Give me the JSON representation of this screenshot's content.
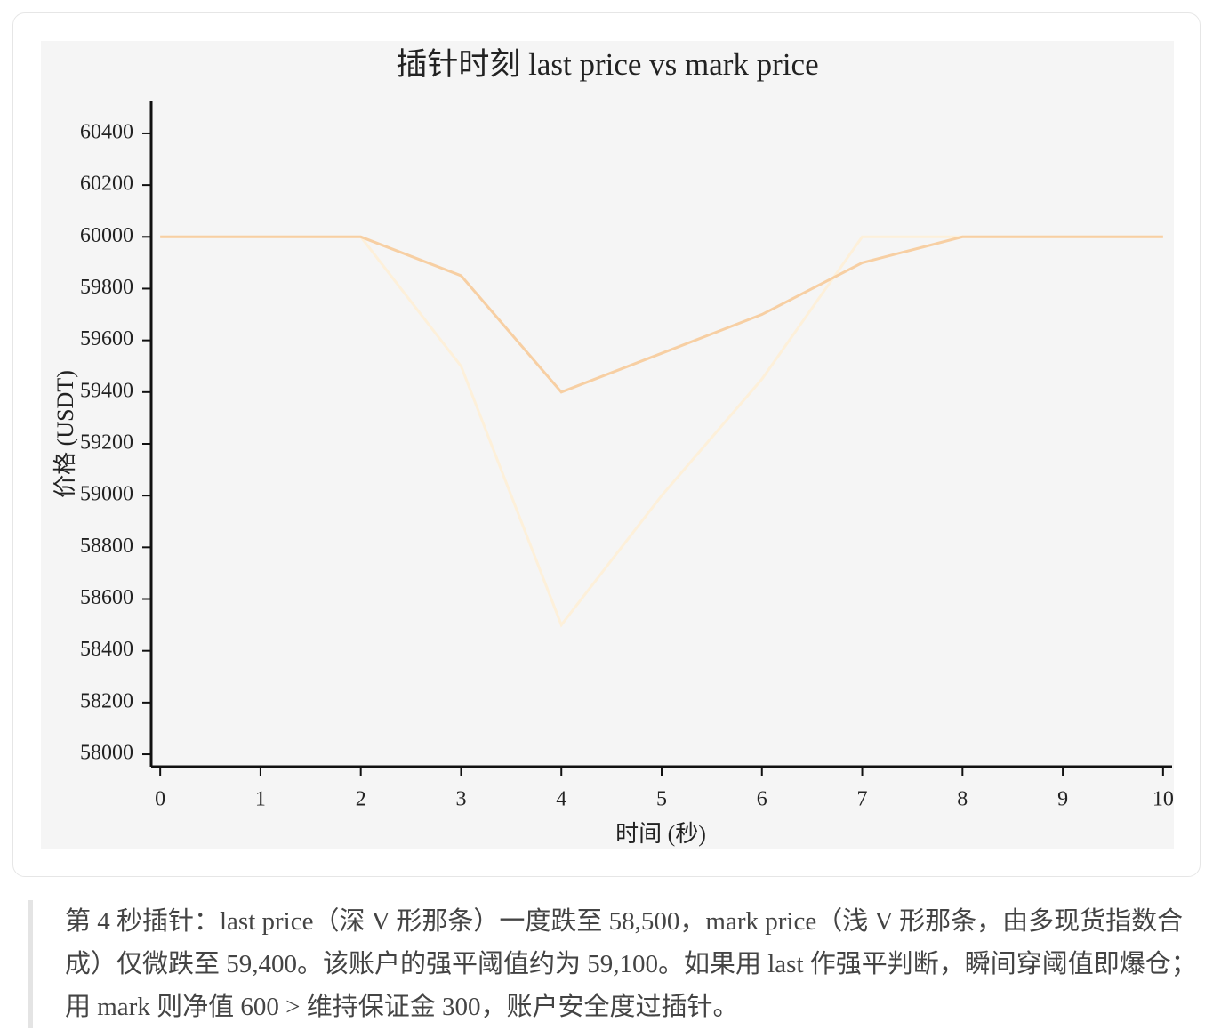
{
  "chart_data": {
    "type": "line",
    "title": "插针时刻 last price vs mark price",
    "x_label": "时间 (秒)",
    "y_label": "价格 (USDT)",
    "x": [
      0,
      1,
      2,
      3,
      4,
      5,
      6,
      7,
      8,
      9,
      10
    ],
    "series": [
      {
        "color": "#fdf0da",
        "values": [
          60000,
          60000,
          60000,
          59500,
          58500,
          59000,
          59450,
          60000,
          60000,
          60000,
          60000
        ]
      },
      {
        "color": "#f7cfa3",
        "values": [
          60000,
          60000,
          60000,
          59850,
          59400,
          59550,
          59700,
          59900,
          60000,
          60000,
          60000
        ]
      }
    ],
    "xlim": [
      -0.09,
      10.09
    ],
    "ylim": [
      57952,
      60527
    ],
    "xticks": [
      0,
      1,
      2,
      3,
      4,
      5,
      6,
      7,
      8,
      9,
      10
    ],
    "yticks": [
      58000,
      58200,
      58400,
      58600,
      58800,
      59000,
      59200,
      59400,
      59600,
      59800,
      60000,
      60200,
      60400
    ]
  },
  "caption": "第 4 秒插针：last price（深 V 形那条）一度跌至 58,500，mark price（浅 V 形那条，由多现货指数合成）仅微跌至 59,400。该账户的强平阈值约为 59,100。如果用 last 作强平判断，瞬间穿阈值即爆仓；用 mark 则净值 600 > 维持保证金 300，账户安全度过插针。"
}
